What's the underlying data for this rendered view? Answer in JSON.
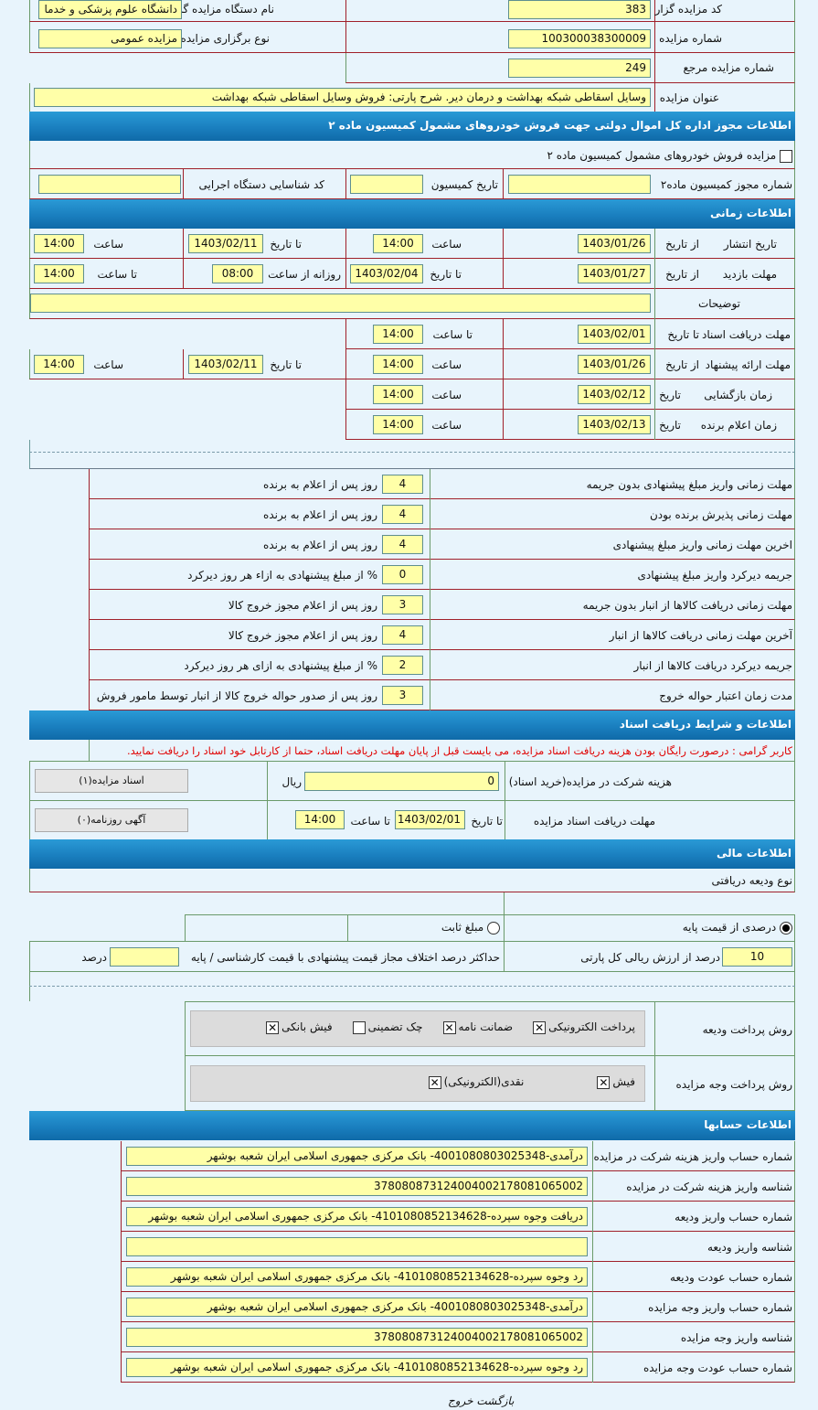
{
  "general": {
    "org_code_label": "کد مزایده گزار",
    "org_code": "383",
    "org_name_label": "نام دستگاه مزایده گزار",
    "org_name": "دانشگاه علوم پزشکی و خدما",
    "auction_no_label": "شماره مزایده",
    "auction_no": "100300038300009",
    "type_label": "نوع برگزاری مزایده",
    "type": "مزایده عمومی",
    "ref_no_label": "شماره مزایده مرجع",
    "ref_no": "249",
    "title_label": "عنوان مزایده",
    "title": "وسایل اسقاطی شبکه بهداشت و درمان دیر. شرح پارتی: فروش وسایل اسقاطی شبکه بهداشت"
  },
  "commission": {
    "header": "اطلاعات مجوز اداره کل اموال دولتی جهت فروش خودروهای مشمول کمیسیون ماده ۲",
    "checkbox_label": "مزایده فروش خودروهای مشمول کمیسیون ماده ۲",
    "permit_no_label": "شماره مجوز کمیسیون ماده۲",
    "permit_no": "",
    "date_label": "تاریخ کمیسیون",
    "date": "",
    "exec_id_label": "کد شناسایی دستگاه اجرایی",
    "exec_id": ""
  },
  "timing": {
    "header": "اطلاعات زمانی",
    "from_date": "از تاریخ",
    "to_date": "تا تاریخ",
    "time": "ساعت",
    "to_time": "تا ساعت",
    "date": "تاریخ",
    "daily_from": "روزانه از ساعت",
    "publish": {
      "label": "تاریخ انتشار",
      "from": "1403/01/26",
      "from_time": "14:00",
      "to": "1403/02/11",
      "to_time": "14:00"
    },
    "visit": {
      "label": "مهلت بازدید",
      "from": "1403/01/27",
      "to": "1403/02/04",
      "daily_from": "08:00",
      "to_time": "14:00"
    },
    "notes_label": "توضیحات",
    "notes": "",
    "docs": {
      "label": "مهلت دریافت اسناد",
      "to": "1403/02/01",
      "to_time": "14:00"
    },
    "offer": {
      "label": "مهلت ارائه پیشنهاد",
      "from": "1403/01/26",
      "from_time": "14:00",
      "to": "1403/02/11",
      "to_time": "14:00"
    },
    "opening": {
      "label": "زمان بازگشایی",
      "date": "1403/02/12",
      "time": "14:00"
    },
    "winner": {
      "label": "زمان اعلام برنده",
      "date": "1403/02/13",
      "time": "14:00"
    }
  },
  "deadlines": [
    {
      "label": "مهلت زمانی واریز مبلغ پیشنهادی بدون جریمه",
      "value": "4",
      "unit": "روز پس از اعلام به برنده"
    },
    {
      "label": "مهلت زمانی پذیرش برنده بودن",
      "value": "4",
      "unit": "روز پس از اعلام به برنده"
    },
    {
      "label": "اخرین مهلت زمانی واریز مبلغ پیشنهادی",
      "value": "4",
      "unit": "روز پس از اعلام به برنده"
    },
    {
      "label": "جریمه دیرکرد واریز مبلغ پیشنهادی",
      "value": "0",
      "unit": "% از مبلغ پیشنهادی به ازاء هر روز دیرکرد"
    },
    {
      "label": "مهلت زمانی دریافت کالاها از انبار بدون جریمه",
      "value": "3",
      "unit": "روز پس از اعلام مجوز خروج کالا"
    },
    {
      "label": "آخرین مهلت زمانی دریافت کالاها از انبار",
      "value": "4",
      "unit": "روز پس از اعلام مجوز خروج کالا"
    },
    {
      "label": "جریمه دیرکرد دریافت کالاها از انبار",
      "value": "2",
      "unit": "% از مبلغ پیشنهادی به ازای هر روز دیرکرد"
    },
    {
      "label": "مدت زمان اعتبار حواله خروج",
      "value": "3",
      "unit": "روز پس از صدور حواله خروج کالا از انبار توسط مامور فروش"
    }
  ],
  "documents": {
    "header": "اطلاعات و شرایط دریافت اسناد",
    "notice": "کاربر گرامی : درصورت رایگان بودن هزینه دریافت اسناد مزایده، می بایست قبل از پایان مهلت دریافت اسناد، حتما از کارتابل خود اسناد را دریافت نمایید.",
    "fee_label": "هزینه شرکت در مزایده(خرید اسناد)",
    "fee": "0",
    "currency": "ریال",
    "docs_button": "اسناد مزایده(۱)",
    "deadline_label": "مهلت دریافت اسناد مزایده",
    "to_date_label": "تا تاریخ",
    "to_date": "1403/02/01",
    "to_time_label": "تا ساعت",
    "to_time": "14:00",
    "newspaper_button": "آگهی روزنامه(۰)"
  },
  "financial": {
    "header": "اطلاعات مالی",
    "deposit_type_label": "نوع ودیعه دریافتی",
    "radio_percent": "درصدی از قیمت پایه",
    "radio_fixed": "مبلغ ثابت",
    "selected": "percent",
    "percent": "10",
    "percent_label": "درصد از ارزش ریالی کل پارتی",
    "max_diff_label": "حداکثر درصد اختلاف مجاز قیمت پیشنهادی با قیمت کارشناسی / پایه",
    "max_diff": "",
    "max_diff_unit": "درصد",
    "deposit_methods_label": "روش پرداخت ودیعه",
    "deposit_methods": [
      {
        "label": "پرداخت الکترونیکی",
        "checked": true
      },
      {
        "label": "ضمانت نامه",
        "checked": true
      },
      {
        "label": "چک تضمینی",
        "checked": false
      },
      {
        "label": "فیش بانکی",
        "checked": true
      }
    ],
    "payment_methods_label": "روش پرداخت وجه مزایده",
    "payment_methods": [
      {
        "label": "فیش",
        "checked": true
      },
      {
        "label": "نقدی(الکترونیکی)",
        "checked": true
      }
    ]
  },
  "accounts": {
    "header": "اطلاعات حسابها",
    "rows": [
      {
        "label": "شماره حساب واریز هزینه شرکت در مزایده",
        "value": "درآمدی-4001080803025348- بانک مرکزی جمهوری اسلامی ایران شعبه بوشهر"
      },
      {
        "label": "شناسه واریز هزینه شرکت در مزایده",
        "value": "378080873124004002178081065002"
      },
      {
        "label": "شماره حساب واریز ودیعه",
        "value": "دریافت وجوه سپرده-4101080852134628- بانک مرکزی جمهوری اسلامی ایران شعبه بوشهر"
      },
      {
        "label": "شناسه واریز ودیعه",
        "value": ""
      },
      {
        "label": "شماره حساب عودت ودیعه",
        "value": "رد وجوه سپرده-4101080852134628- بانک مرکزی جمهوری اسلامی ایران شعبه بوشهر"
      },
      {
        "label": "شماره حساب واریز وجه مزایده",
        "value": "درآمدی-4001080803025348- بانک مرکزی جمهوری اسلامی ایران شعبه بوشهر"
      },
      {
        "label": "شناسه واریز وجه مزایده",
        "value": "378080873124004002178081065002"
      },
      {
        "label": "شماره حساب عودت وجه مزایده",
        "value": "رد وجوه سپرده-4101080852134628- بانک مرکزی جمهوری اسلامی ایران شعبه بوشهر"
      }
    ]
  },
  "footer": {
    "back": "بازگشت",
    "exit": "خروج"
  },
  "colors": {
    "header": "#1a7fbf",
    "field": "#ffffa8",
    "background": "#e8f4fc",
    "notice": "#e00000"
  }
}
